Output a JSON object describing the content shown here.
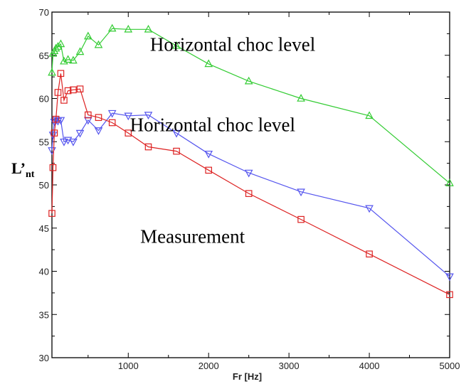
{
  "chart_data": {
    "type": "line",
    "title": "",
    "xlabel": "Fr [Hz]",
    "ylabel_main": "L’",
    "ylabel_sub": "nt",
    "xlim": [
      50,
      5000
    ],
    "ylim": [
      30,
      70
    ],
    "xticks": [
      1000,
      2000,
      3000,
      4000,
      5000
    ],
    "xtick_labels": [
      "1000",
      "2000",
      "3000",
      "4000",
      "5000"
    ],
    "yticks": [
      30,
      35,
      40,
      45,
      50,
      55,
      60,
      65,
      70
    ],
    "ytick_labels": [
      "30",
      "35",
      "40",
      "45",
      "50",
      "55",
      "60",
      "65",
      "70"
    ],
    "grid": false,
    "annotations": [
      {
        "text": "Horizontal choc level",
        "x": 2300,
        "y": 65.5
      },
      {
        "text": "Horizontal choc level",
        "x": 2050,
        "y": 56.2
      },
      {
        "text": "Measurement",
        "x": 1800,
        "y": 43.3
      }
    ],
    "series": [
      {
        "color": "#33cc33",
        "marker": "triangle-up",
        "x": [
          50,
          63,
          80,
          100,
          125,
          160,
          200,
          250,
          315,
          400,
          500,
          630,
          800,
          1000,
          1250,
          1600,
          2000,
          2500,
          3150,
          4000,
          5000
        ],
        "y": [
          63.0,
          65.2,
          65.5,
          65.8,
          66.0,
          66.3,
          64.3,
          64.5,
          64.4,
          65.4,
          67.2,
          66.2,
          68.1,
          68.0,
          68.0,
          66.1,
          64.0,
          62.0,
          60.0,
          58.0,
          50.2
        ]
      },
      {
        "color": "#5555ee",
        "marker": "triangle-down",
        "x": [
          50,
          63,
          80,
          100,
          125,
          160,
          200,
          250,
          315,
          400,
          500,
          630,
          800,
          1000,
          1250,
          1600,
          2000,
          2500,
          3150,
          4000,
          5000
        ],
        "y": [
          54.0,
          55.8,
          57.3,
          57.5,
          57.4,
          57.5,
          55.0,
          55.2,
          55.0,
          56.0,
          57.5,
          56.3,
          58.3,
          58.0,
          58.1,
          56.0,
          53.6,
          51.4,
          49.2,
          47.3,
          39.4
        ]
      },
      {
        "color": "#dd2222",
        "marker": "square",
        "x": [
          50,
          63,
          80,
          100,
          125,
          160,
          200,
          250,
          315,
          400,
          500,
          630,
          800,
          1000,
          1250,
          1600,
          2000,
          2500,
          3150,
          4000,
          5000
        ],
        "y": [
          46.7,
          52.0,
          56.0,
          57.6,
          60.7,
          62.9,
          59.8,
          60.9,
          61.0,
          61.1,
          58.1,
          57.8,
          57.2,
          56.0,
          54.4,
          53.9,
          51.7,
          49.0,
          46.0,
          42.0,
          37.3
        ]
      }
    ]
  }
}
